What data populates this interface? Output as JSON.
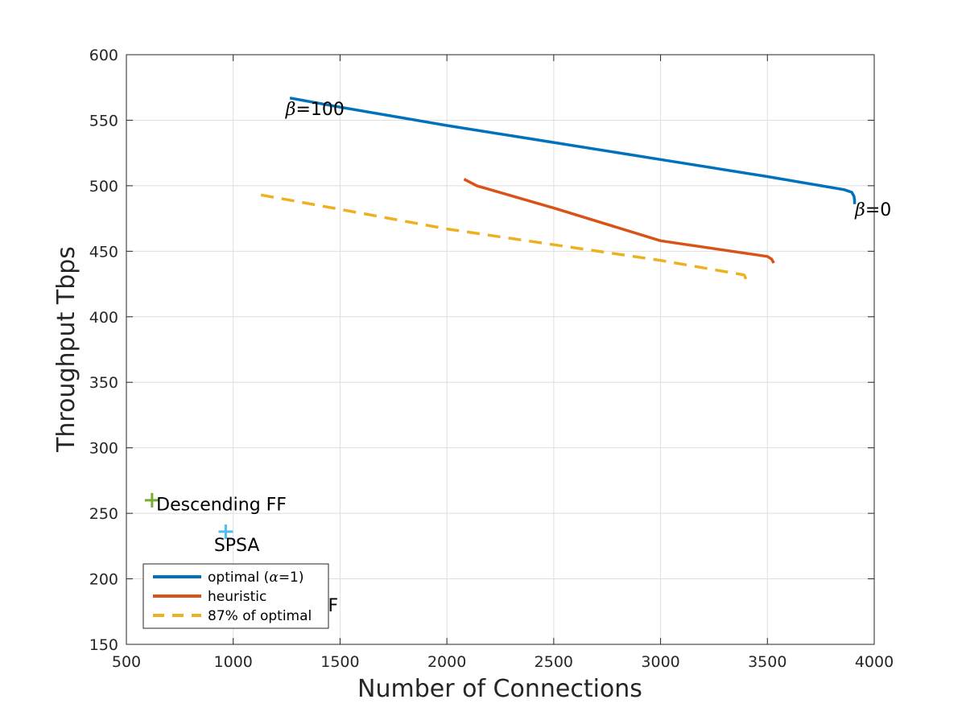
{
  "chart_data": {
    "type": "line",
    "xlabel": "Number of Connections",
    "ylabel": "Throughput Tbps",
    "xlim": [
      500,
      4000
    ],
    "ylim": [
      150,
      600
    ],
    "xticks": [
      500,
      1000,
      1500,
      2000,
      2500,
      3000,
      3500,
      4000
    ],
    "yticks": [
      150,
      200,
      250,
      300,
      350,
      400,
      450,
      500,
      550,
      600
    ],
    "grid": true,
    "legend_position": "bottom-left",
    "series": [
      {
        "name_prefix": "optimal (",
        "name_symbol": "α",
        "name_suffix": "=1)",
        "color": "#0072BD",
        "style": "solid",
        "x": [
          1265,
          1500,
          2000,
          2500,
          3000,
          3500,
          3860,
          3895,
          3905,
          3908,
          3908
        ],
        "y": [
          567,
          560,
          546,
          533,
          520,
          507,
          497,
          495,
          492,
          489,
          486
        ]
      },
      {
        "name": "heuristic",
        "color": "#D95319",
        "style": "solid",
        "x": [
          2080,
          2140,
          2500,
          3000,
          3500,
          3520,
          3530
        ],
        "y": [
          505,
          500,
          483,
          458,
          446,
          444,
          441
        ]
      },
      {
        "name": "87% of optimal",
        "color": "#EDB120",
        "style": "dashed",
        "x": [
          1130,
          1500,
          2000,
          2500,
          3000,
          3390,
          3395,
          3400,
          3400
        ],
        "y": [
          493,
          482,
          467,
          455,
          443,
          432,
          431,
          428,
          423
        ]
      }
    ],
    "annotations": [
      {
        "symbol": "β",
        "text": "=100",
        "x": 1245,
        "y": 559
      },
      {
        "symbol": "β",
        "text": "=0",
        "x": 3910,
        "y": 482
      }
    ],
    "markers": [
      {
        "label": "Descending FF",
        "x": 620,
        "y": 260,
        "color": "#77AC30",
        "label_x": 640,
        "label_y": 257
      },
      {
        "label": "SPSA",
        "x": 965,
        "y": 236,
        "color": "#4DBEEE",
        "label_x": 910,
        "label_y": 226
      },
      {
        "label": "Ascending FF",
        "x": 1030,
        "y": 180,
        "color": "#7E2F8E",
        "label_x": 940,
        "label_y": 180
      }
    ]
  }
}
